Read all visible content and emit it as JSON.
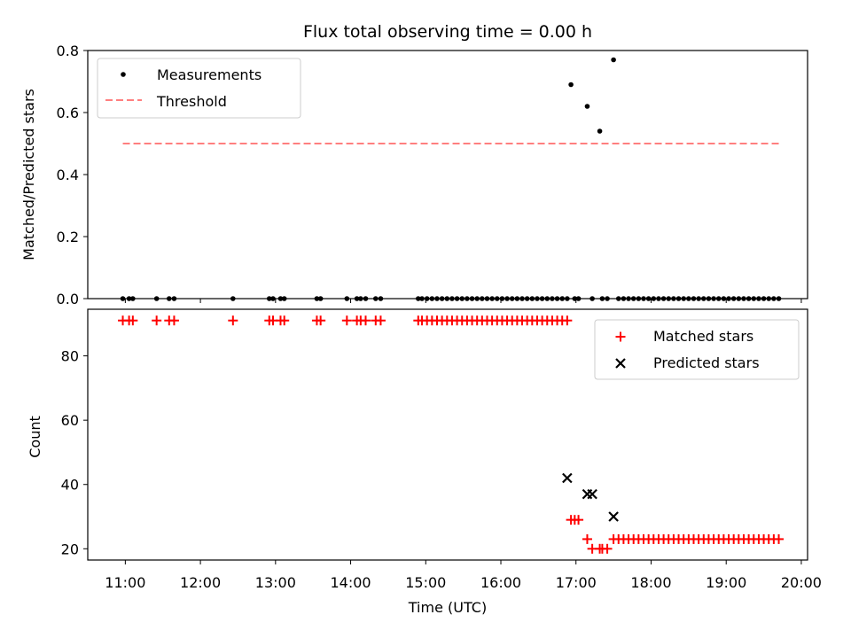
{
  "chart_data": [
    {
      "type": "scatter",
      "title": "Flux total observing time = 0.00 h",
      "xlabel": "",
      "ylabel": "Matched/Predicted stars",
      "xlim": [
        "10:30",
        "20:05"
      ],
      "ylim": [
        0,
        0.8
      ],
      "yticks": [
        "0.0",
        "0.2",
        "0.4",
        "0.6",
        "0.8"
      ],
      "legend_position": "upper-left",
      "series": [
        {
          "name": "Measurements",
          "kind": "scatter",
          "marker": "dot",
          "color": "#000000",
          "x": [
            "10:58",
            "11:03",
            "11:06",
            "11:25",
            "11:35",
            "11:39",
            "12:26",
            "12:55",
            "12:58",
            "13:04",
            "13:07",
            "13:33",
            "13:36",
            "13:57",
            "14:05",
            "14:08",
            "14:12",
            "14:20",
            "14:24",
            "14:54",
            "14:57",
            "15:01",
            "15:05",
            "15:09",
            "15:13",
            "15:17",
            "15:21",
            "15:25",
            "15:29",
            "15:33",
            "15:37",
            "15:41",
            "15:45",
            "15:49",
            "15:53",
            "15:57",
            "16:01",
            "16:05",
            "16:09",
            "16:13",
            "16:17",
            "16:21",
            "16:25",
            "16:29",
            "16:33",
            "16:37",
            "16:41",
            "16:45",
            "16:49",
            "16:53",
            "16:56",
            "16:59",
            "17:02",
            "17:09",
            "17:13",
            "17:19",
            "17:21",
            "17:25",
            "17:30",
            "17:34",
            "17:38",
            "17:42",
            "17:46",
            "17:50",
            "17:54",
            "17:58",
            "18:02",
            "18:06",
            "18:10",
            "18:14",
            "18:18",
            "18:22",
            "18:26",
            "18:30",
            "18:34",
            "18:38",
            "18:42",
            "18:46",
            "18:50",
            "18:54",
            "18:58",
            "19:02",
            "19:06",
            "19:10",
            "19:14",
            "19:18",
            "19:22",
            "19:26",
            "19:30",
            "19:34",
            "19:38",
            "19:42"
          ],
          "y": [
            0,
            0,
            0,
            0,
            0,
            0,
            0,
            0,
            0,
            0,
            0,
            0,
            0,
            0,
            0,
            0,
            0,
            0,
            0,
            0,
            0,
            0,
            0,
            0,
            0,
            0,
            0,
            0,
            0,
            0,
            0,
            0,
            0,
            0,
            0,
            0,
            0,
            0,
            0,
            0,
            0,
            0,
            0,
            0,
            0,
            0,
            0,
            0,
            0,
            0,
            0.69,
            0,
            0,
            0.62,
            0,
            0.54,
            0,
            0,
            0.77,
            0,
            0,
            0,
            0,
            0,
            0,
            0,
            0,
            0,
            0,
            0,
            0,
            0,
            0,
            0,
            0,
            0,
            0,
            0,
            0,
            0,
            0,
            0,
            0,
            0,
            0,
            0,
            0,
            0,
            0,
            0,
            0,
            0
          ]
        },
        {
          "name": "Threshold",
          "kind": "line",
          "dash": true,
          "color": "#ff7f7f",
          "x": [
            "10:58",
            "19:42"
          ],
          "y": [
            0.5,
            0.5
          ]
        }
      ]
    },
    {
      "type": "scatter",
      "title": "",
      "xlabel": "Time (UTC)",
      "ylabel": "Count",
      "xlim": [
        "10:30",
        "20:05"
      ],
      "ylim": [
        16.5,
        94.5
      ],
      "yticks": [
        "20",
        "40",
        "60",
        "80"
      ],
      "xticks": [
        "11:00",
        "12:00",
        "13:00",
        "14:00",
        "15:00",
        "16:00",
        "17:00",
        "18:00",
        "19:00",
        "20:00"
      ],
      "legend_position": "upper-right",
      "series": [
        {
          "name": "Matched stars",
          "kind": "scatter",
          "marker": "plus",
          "color": "#ff0000",
          "x": [
            "10:58",
            "11:03",
            "11:06",
            "11:25",
            "11:35",
            "11:39",
            "12:26",
            "12:55",
            "12:58",
            "13:04",
            "13:07",
            "13:33",
            "13:36",
            "13:57",
            "14:05",
            "14:08",
            "14:12",
            "14:20",
            "14:24",
            "14:54",
            "14:57",
            "15:01",
            "15:05",
            "15:09",
            "15:13",
            "15:17",
            "15:21",
            "15:25",
            "15:29",
            "15:33",
            "15:37",
            "15:41",
            "15:45",
            "15:49",
            "15:53",
            "15:57",
            "16:01",
            "16:05",
            "16:09",
            "16:13",
            "16:17",
            "16:21",
            "16:25",
            "16:29",
            "16:33",
            "16:37",
            "16:41",
            "16:45",
            "16:49",
            "16:53",
            "16:56",
            "16:59",
            "17:02",
            "17:09",
            "17:13",
            "17:19",
            "17:21",
            "17:25",
            "17:30",
            "17:34",
            "17:38",
            "17:42",
            "17:46",
            "17:50",
            "17:54",
            "17:58",
            "18:02",
            "18:06",
            "18:10",
            "18:14",
            "18:18",
            "18:22",
            "18:26",
            "18:30",
            "18:34",
            "18:38",
            "18:42",
            "18:46",
            "18:50",
            "18:54",
            "18:58",
            "19:02",
            "19:06",
            "19:10",
            "19:14",
            "19:18",
            "19:22",
            "19:26",
            "19:30",
            "19:34",
            "19:38",
            "19:42"
          ],
          "y": [
            91,
            91,
            91,
            91,
            91,
            91,
            91,
            91,
            91,
            91,
            91,
            91,
            91,
            91,
            91,
            91,
            91,
            91,
            91,
            91,
            91,
            91,
            91,
            91,
            91,
            91,
            91,
            91,
            91,
            91,
            91,
            91,
            91,
            91,
            91,
            91,
            91,
            91,
            91,
            91,
            91,
            91,
            91,
            91,
            91,
            91,
            91,
            91,
            91,
            91,
            29,
            29,
            29,
            23,
            20,
            20,
            20,
            20,
            23,
            23,
            23,
            23,
            23,
            23,
            23,
            23,
            23,
            23,
            23,
            23,
            23,
            23,
            23,
            23,
            23,
            23,
            23,
            23,
            23,
            23,
            23,
            23,
            23,
            23,
            23,
            23,
            23,
            23,
            23,
            23,
            23,
            23
          ]
        },
        {
          "name": "Predicted stars",
          "kind": "scatter",
          "marker": "x",
          "color": "#000000",
          "x": [
            "16:53",
            "17:09",
            "17:13",
            "17:30"
          ],
          "y": [
            42,
            37,
            37,
            30
          ]
        }
      ]
    }
  ]
}
